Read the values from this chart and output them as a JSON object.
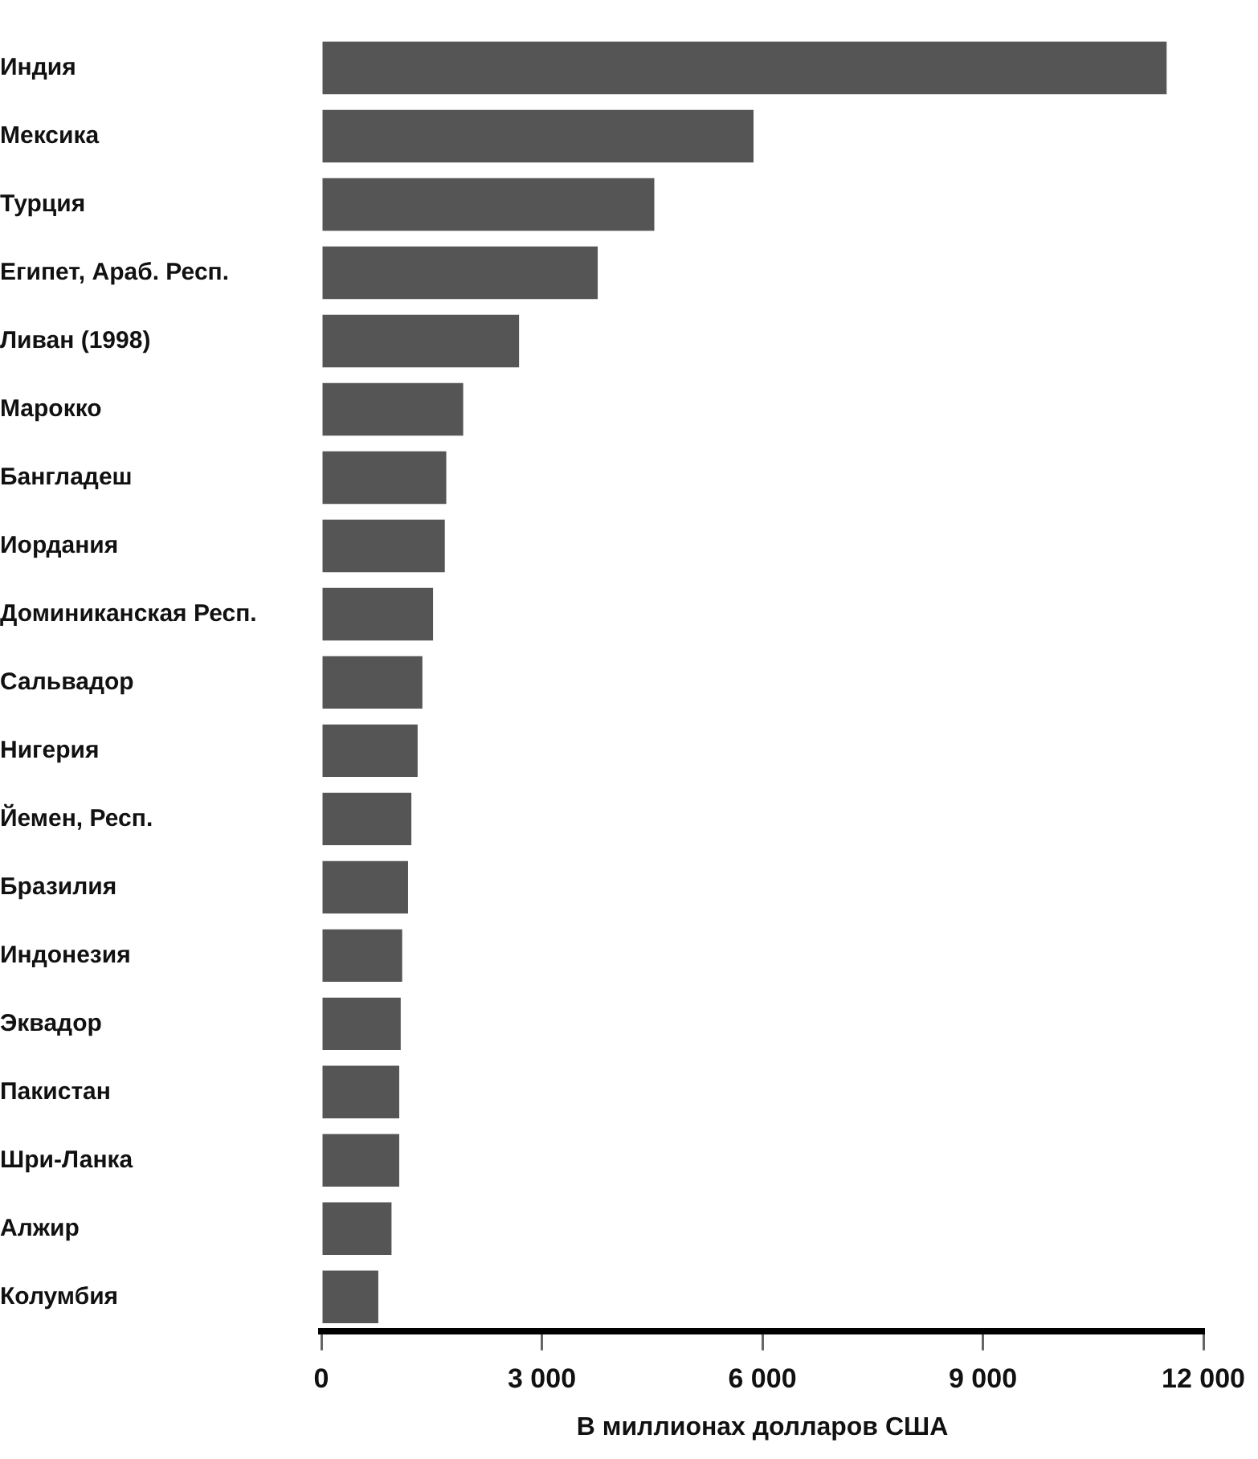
{
  "chart_data": {
    "type": "bar",
    "orientation": "horizontal",
    "xlabel": "В миллионах долларов США",
    "categories": [
      "Индия",
      "Мексика",
      "Турция",
      "Египет, Араб. Респ.",
      "Ливан (1998)",
      "Марокко",
      "Бангладеш",
      "Иордания",
      "Доминиканская Респ.",
      "Сальвадор",
      "Нигерия",
      "Йемен, Респ.",
      "Бразилия",
      "Индонезия",
      "Эквадор",
      "Пакистан",
      "Шри-Ланка",
      "Алжир",
      "Колумбия"
    ],
    "values": [
      11500,
      5880,
      4530,
      3760,
      2690,
      1930,
      1700,
      1680,
      1520,
      1375,
      1310,
      1225,
      1180,
      1100,
      1080,
      1060,
      1060,
      955,
      775
    ],
    "color": "#555555",
    "xlim": [
      0,
      12000
    ],
    "xticks": [
      {
        "value": 0,
        "label": "0"
      },
      {
        "value": 3000,
        "label": "3 000"
      },
      {
        "value": 6000,
        "label": "6 000"
      },
      {
        "value": 9000,
        "label": "9 000"
      },
      {
        "value": 12000,
        "label": "12 000"
      }
    ],
    "grid": false,
    "legend": false
  }
}
